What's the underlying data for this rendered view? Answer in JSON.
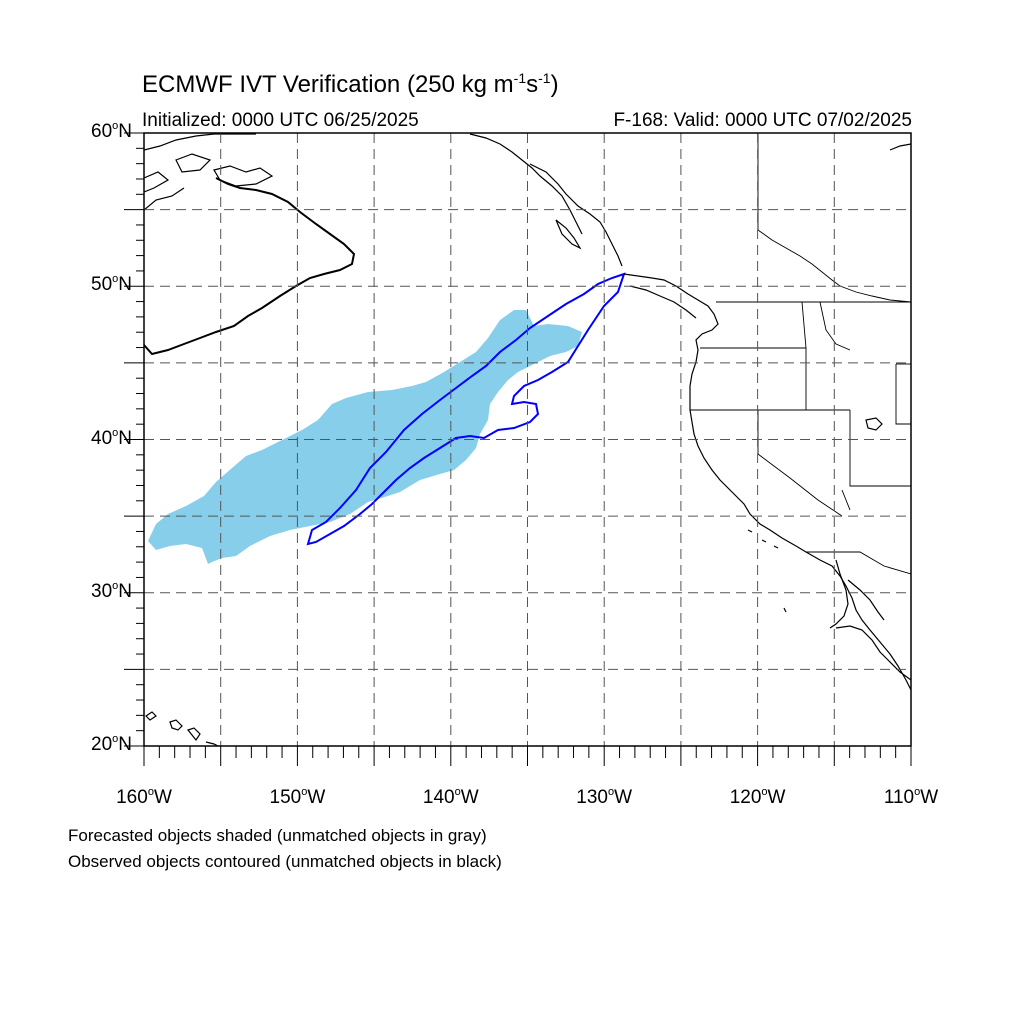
{
  "header": {
    "title_main": "ECMWF IVT Verification (250 kg m",
    "title_exp1": "-1",
    "title_mid": "s",
    "title_exp2": "-1",
    "title_end": ")",
    "initialized": "Initialized: 0000 UTC 06/25/2025",
    "valid": "F-168: Valid: 0000 UTC 07/02/2025"
  },
  "axes": {
    "lat_labels": [
      {
        "num": "60",
        "hemi": "N"
      },
      {
        "num": "50",
        "hemi": "N"
      },
      {
        "num": "40",
        "hemi": "N"
      },
      {
        "num": "30",
        "hemi": "N"
      },
      {
        "num": "20",
        "hemi": "N"
      }
    ],
    "lon_labels": [
      {
        "num": "160",
        "hemi": "W"
      },
      {
        "num": "150",
        "hemi": "W"
      },
      {
        "num": "140",
        "hemi": "W"
      },
      {
        "num": "130",
        "hemi": "W"
      },
      {
        "num": "120",
        "hemi": "W"
      },
      {
        "num": "110",
        "hemi": "W"
      }
    ],
    "lat_range": [
      20,
      60
    ],
    "lon_range": [
      -160,
      -110
    ],
    "grid_step_deg": 5
  },
  "legend": {
    "line1": "Forecasted objects shaded (unmatched objects in gray)",
    "line2": "Observed objects contoured (unmatched objects in black)"
  },
  "colors": {
    "forecast_fill": "#87ceeb",
    "observed_contour": "#0000ff",
    "unmatched_observed": "#000000",
    "coastline": "#000000",
    "grid": "#555555"
  }
}
